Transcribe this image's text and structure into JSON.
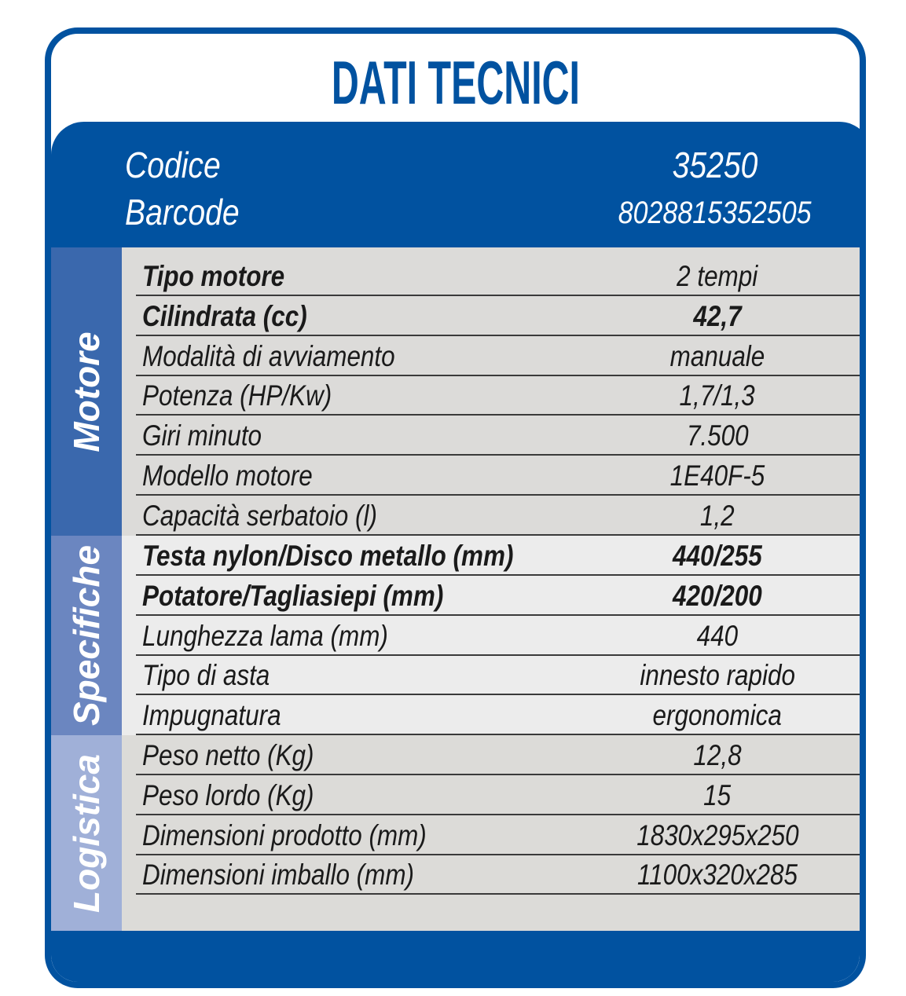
{
  "title": "DATI TECNICI",
  "header": {
    "rows": [
      {
        "label": "Codice",
        "value": "35250"
      },
      {
        "label": "Barcode",
        "value": "8028815352505"
      }
    ]
  },
  "colors": {
    "brand_blue": "#0152a0",
    "motore": "#3a68ad",
    "specifiche": "#6b86c0",
    "logistica": "#a0b0d8"
  },
  "sections": [
    {
      "name": "Motore",
      "rows": [
        {
          "label": "Tipo motore",
          "value": "2 tempi",
          "bold_label": true,
          "bold_value": false
        },
        {
          "label": "Cilindrata (cc)",
          "value": "42,7",
          "bold_label": true,
          "bold_value": true
        },
        {
          "label": "Modalità di avviamento",
          "value": "manuale"
        },
        {
          "label": "Potenza (HP/Kw)",
          "value": "1,7/1,3"
        },
        {
          "label": "Giri minuto",
          "value": "7.500"
        },
        {
          "label": "Modello motore",
          "value": "1E40F-5"
        },
        {
          "label": "Capacità serbatoio (l)",
          "value": "1,2"
        }
      ]
    },
    {
      "name": "Specifiche",
      "rows": [
        {
          "label": "Testa nylon/Disco metallo (mm)",
          "value": "440/255",
          "bold_label": true,
          "bold_value": true
        },
        {
          "label": "Potatore/Tagliasiepi (mm)",
          "value": "420/200",
          "bold_label": true,
          "bold_value": true
        },
        {
          "label": "Lunghezza lama (mm)",
          "value": "440"
        },
        {
          "label": "Tipo di asta",
          "value": "innesto rapido"
        },
        {
          "label": "Impugnatura",
          "value": "ergonomica"
        }
      ]
    },
    {
      "name": "Logistica",
      "rows": [
        {
          "label": "Peso netto (Kg)",
          "value": "12,8"
        },
        {
          "label": "Peso lordo (Kg)",
          "value": "15"
        },
        {
          "label": "Dimensioni prodotto (mm)",
          "value": "1830x295x250"
        },
        {
          "label": "Dimensioni imballo (mm)",
          "value": "1100x320x285"
        }
      ]
    }
  ]
}
